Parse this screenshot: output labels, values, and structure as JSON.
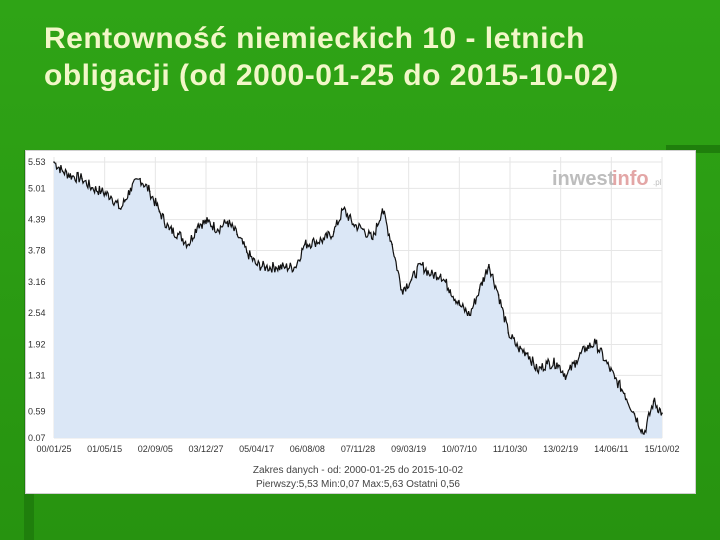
{
  "slide": {
    "title": "Rentowność niemieckich 10 - letnich obligacji (od 2000-01-25 do 2015-10-02)"
  },
  "chart_data": {
    "type": "area",
    "title": "",
    "xlabel": "",
    "ylabel": "",
    "ylim": [
      0.07,
      5.63
    ],
    "y_ticks": [
      "5.53",
      "5.01",
      "4.39",
      "3.78",
      "3.16",
      "2.54",
      "1.92",
      "1.31",
      "0.59",
      "0.07"
    ],
    "x_ticks": [
      "00/01/25",
      "01/05/15",
      "02/09/05",
      "03/12/27",
      "05/04/17",
      "06/08/08",
      "07/11/28",
      "09/03/19",
      "10/07/10",
      "11/10/30",
      "13/02/19",
      "14/06/11",
      "15/10/02"
    ],
    "grid": true,
    "watermark": {
      "part1": "inwest",
      "part2": "info",
      "suffix": ".pl"
    },
    "footer": {
      "line1": "Zakres danych - od: 2000-01-25 do 2015-10-02",
      "line2": "Pierwszy:5,53   Min:0,07   Max:5,63   Ostatni 0,56"
    },
    "colors": {
      "line": "#111111",
      "fill": "#dbe7f6",
      "grid": "#e6e6e6"
    },
    "series": [
      {
        "x": [
          "2000-01-25",
          "2000-04-15",
          "2000-07-15",
          "2000-10-15",
          "2001-01-15",
          "2001-04-15",
          "2001-07-15",
          "2001-10-15",
          "2002-01-15",
          "2002-04-15",
          "2002-07-15",
          "2002-10-15",
          "2003-01-15",
          "2003-04-15",
          "2003-07-15",
          "2003-10-15",
          "2004-01-15",
          "2004-04-15",
          "2004-07-15",
          "2004-10-15",
          "2005-01-15",
          "2005-04-15",
          "2005-07-15",
          "2005-10-15",
          "2006-01-15",
          "2006-04-15",
          "2006-07-15",
          "2006-10-15",
          "2007-01-15",
          "2007-04-15",
          "2007-07-15",
          "2007-10-15",
          "2008-01-15",
          "2008-04-15",
          "2008-07-15",
          "2008-10-15",
          "2009-01-15",
          "2009-04-15",
          "2009-07-15",
          "2009-10-15",
          "2010-01-15",
          "2010-04-15",
          "2010-07-15",
          "2010-10-15",
          "2011-01-15",
          "2011-04-15",
          "2011-07-15",
          "2011-10-15",
          "2012-01-15",
          "2012-04-15",
          "2012-07-15",
          "2012-10-15",
          "2013-01-15",
          "2013-04-15",
          "2013-07-15",
          "2013-10-15",
          "2014-01-15",
          "2014-04-15",
          "2014-07-15",
          "2014-10-15",
          "2015-01-15",
          "2015-04-15",
          "2015-07-15",
          "2015-10-02"
        ],
        "y": [
          5.53,
          5.35,
          5.25,
          5.2,
          5.02,
          4.95,
          4.85,
          4.6,
          5.0,
          5.2,
          4.95,
          4.55,
          4.2,
          4.1,
          3.9,
          4.3,
          4.35,
          4.2,
          4.35,
          4.1,
          3.75,
          3.5,
          3.45,
          3.45,
          3.45,
          3.45,
          3.9,
          3.95,
          4.0,
          4.15,
          4.6,
          4.3,
          4.2,
          4.0,
          4.6,
          3.9,
          3.0,
          3.2,
          3.5,
          3.3,
          3.3,
          3.0,
          2.7,
          2.5,
          3.0,
          3.5,
          2.9,
          2.15,
          1.85,
          1.75,
          1.4,
          1.55,
          1.55,
          1.3,
          1.6,
          1.85,
          1.95,
          1.6,
          1.25,
          0.95,
          0.55,
          0.15,
          0.8,
          0.56
        ]
      }
    ]
  }
}
